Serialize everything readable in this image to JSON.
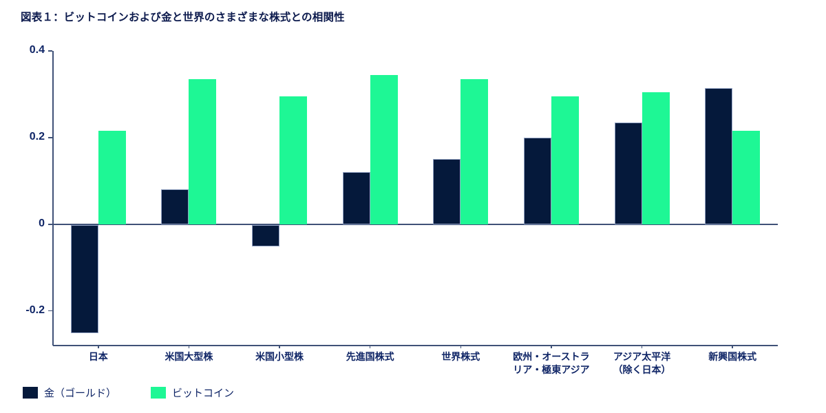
{
  "title": "図表１：ビットコインおよび金と世界のさまざまな株式との相関性",
  "colors": {
    "gold": "#05193B",
    "bitcoin": "#1EF795",
    "gold_border": "#93A3C4",
    "axis_line": "#3F5177",
    "title_text": "#0C1A4D",
    "label_text": "#0F2566"
  },
  "chart_data": {
    "type": "bar",
    "title": "図表１：ビットコインおよび金と世界のさまざまな株式との相関性",
    "categories": [
      "日本",
      "米国大型株",
      "米国小型株",
      "先進国株式",
      "世界株式",
      "欧州・オーストラ\nリア・極東アジア",
      "アジア太平洋\n（除く日本）",
      "新興国株式"
    ],
    "series": [
      {
        "name": "金（ゴールド）",
        "color_key": "gold",
        "values": [
          -0.25,
          0.08,
          -0.05,
          0.12,
          0.15,
          0.2,
          0.235,
          0.315
        ]
      },
      {
        "name": "ビットコイン",
        "color_key": "bitcoin",
        "values": [
          0.215,
          0.335,
          0.295,
          0.345,
          0.335,
          0.295,
          0.305,
          0.215
        ]
      }
    ],
    "y_ticks": [
      {
        "label": "0.4",
        "value": 0.4
      },
      {
        "label": "0.2",
        "value": 0.2
      },
      {
        "label": "0",
        "value": 0
      },
      {
        "label": "-0.2",
        "value": -0.2
      }
    ],
    "ylim": [
      -0.28,
      0.4
    ],
    "xlabel": "",
    "ylabel": "",
    "grid": false,
    "legend_position": "bottom-left"
  },
  "legend": {
    "items": [
      {
        "label": "金（ゴールド）",
        "color_key": "gold"
      },
      {
        "label": "ビットコイン",
        "color_key": "bitcoin"
      }
    ]
  }
}
